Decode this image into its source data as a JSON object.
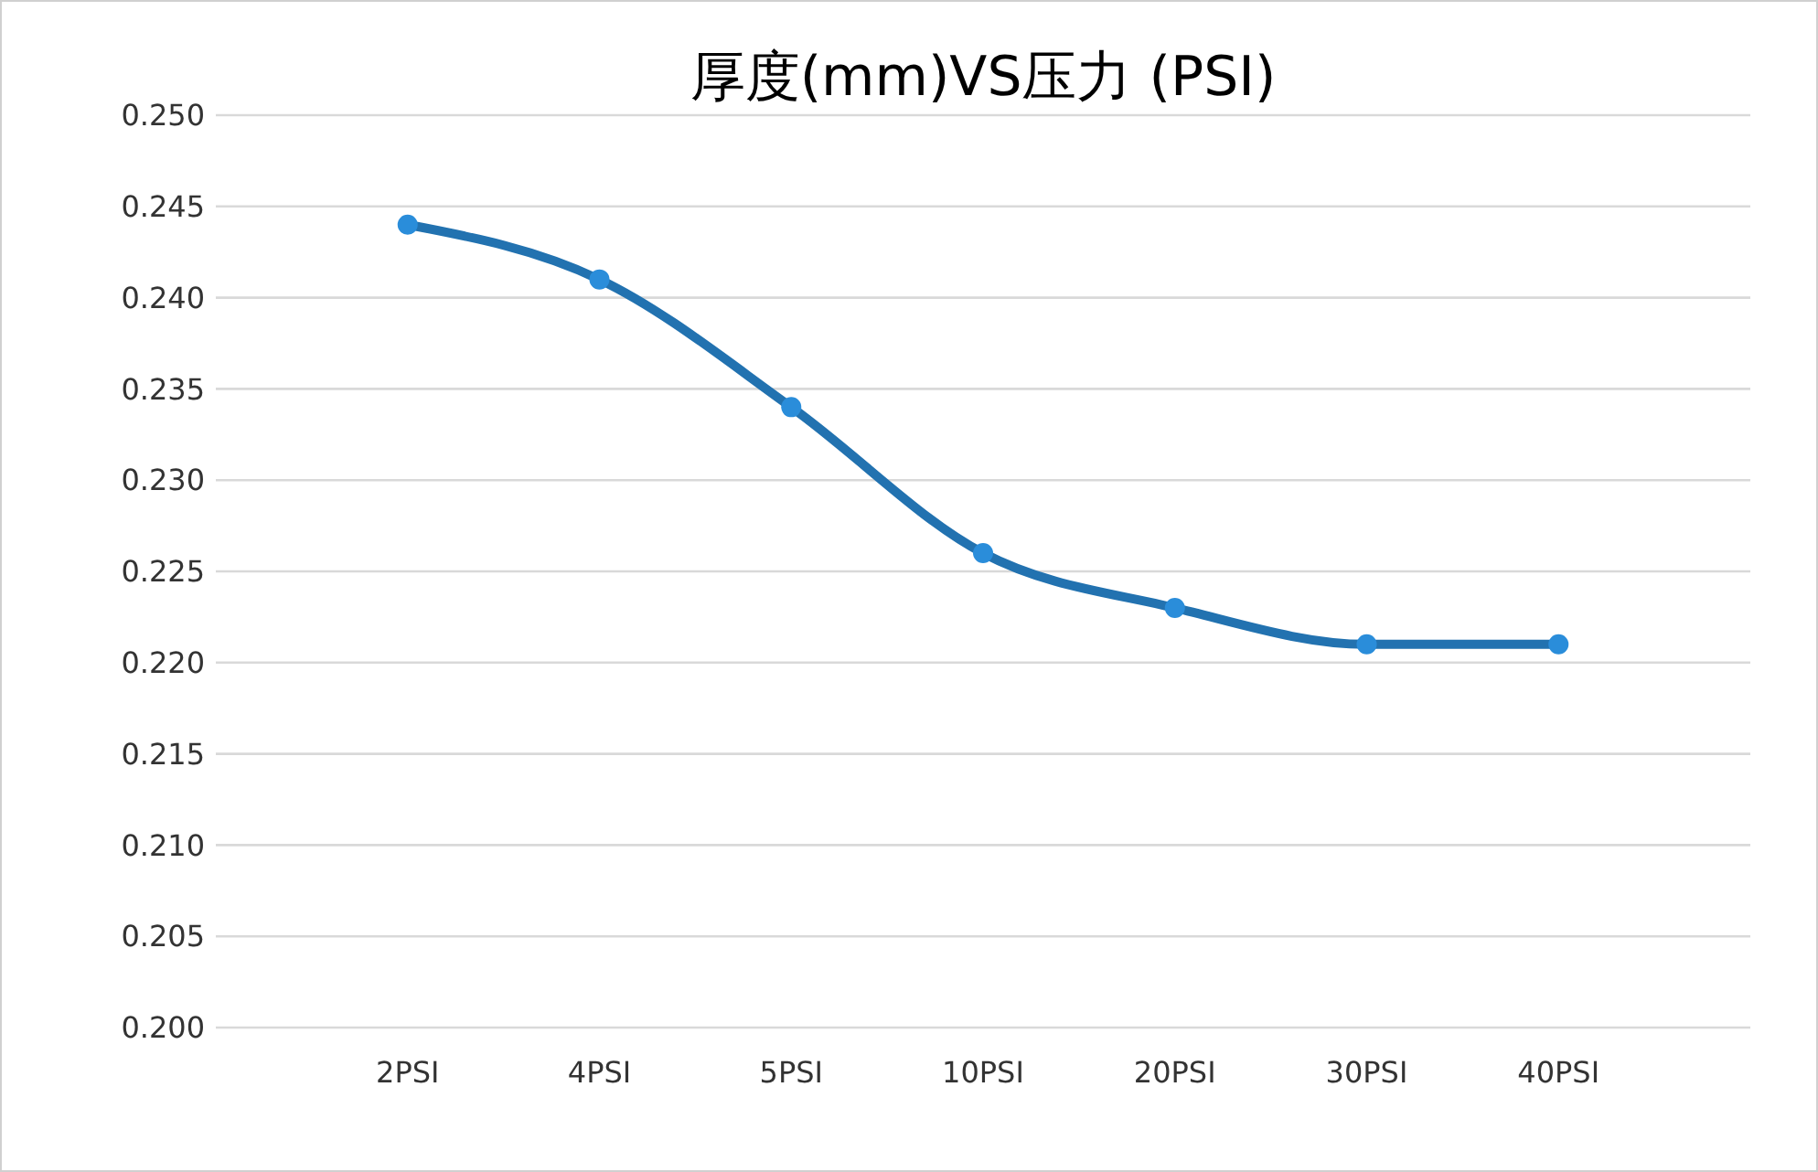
{
  "chart_data": {
    "type": "line",
    "title": "厚度(mm)VS压力 (PSI)",
    "categories": [
      "2PSI",
      "4PSI",
      "5PSI",
      "10PSI",
      "20PSI",
      "30PSI",
      "40PSI"
    ],
    "series": [
      {
        "color": "#2272b0",
        "values": [
          0.244,
          0.241,
          0.234,
          0.226,
          0.223,
          0.221,
          0.221
        ]
      }
    ],
    "ylim": [
      0.2,
      0.25
    ],
    "yticks": [
      {
        "value": 0.2,
        "label": "0.200"
      },
      {
        "value": 0.205,
        "label": "0.205"
      },
      {
        "value": 0.21,
        "label": "0.210"
      },
      {
        "value": 0.215,
        "label": "0.215"
      },
      {
        "value": 0.22,
        "label": "0.220"
      },
      {
        "value": 0.225,
        "label": "0.225"
      },
      {
        "value": 0.23,
        "label": "0.230"
      },
      {
        "value": 0.235,
        "label": "0.235"
      },
      {
        "value": 0.24,
        "label": "0.240"
      },
      {
        "value": 0.245,
        "label": "0.245"
      },
      {
        "value": 0.25,
        "label": "0.250"
      }
    ],
    "grid": "y",
    "marker": "circle",
    "line_style": "solid"
  }
}
